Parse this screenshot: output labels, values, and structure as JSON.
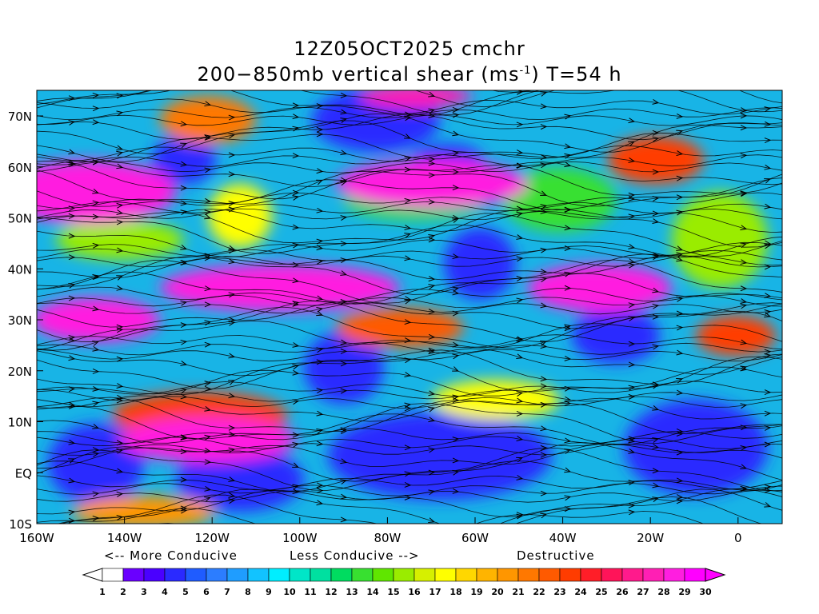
{
  "title": {
    "line1": "12Z05OCT2025 cmchr",
    "line2_prefix": "200−850mb vertical shear (ms",
    "line2_unit_exp": "-1",
    "line2_suffix": ") T=54 h"
  },
  "lat_labels": [
    "70N",
    "60N",
    "50N",
    "40N",
    "30N",
    "20N",
    "10N",
    "EQ",
    "10S"
  ],
  "lon_labels": [
    "160W",
    "140W",
    "120W",
    "100W",
    "80W",
    "60W",
    "40W",
    "20W",
    "0"
  ],
  "legend_notes": {
    "more_conducive": "<-- More Conducive",
    "less_conducive": "Less Conducive -->",
    "destructive": "Destructive"
  },
  "colorbar": {
    "labels": [
      "1",
      "2",
      "3",
      "4",
      "5",
      "6",
      "7",
      "8",
      "9",
      "10",
      "11",
      "12",
      "13",
      "14",
      "15",
      "16",
      "17",
      "18",
      "19",
      "20",
      "21",
      "22",
      "23",
      "24",
      "25",
      "26",
      "27",
      "28",
      "29",
      "30"
    ],
    "colors": [
      "#ffffff",
      "#6a00ff",
      "#4a00ff",
      "#2a2aff",
      "#1f5cff",
      "#2c7dff",
      "#1f9dff",
      "#12c3ff",
      "#00eeff",
      "#00e6c8",
      "#00e0a0",
      "#00dc60",
      "#38e030",
      "#60e600",
      "#9aec00",
      "#d6f000",
      "#ffff00",
      "#ffd700",
      "#ffb400",
      "#ff9600",
      "#ff7800",
      "#ff5a00",
      "#ff3c00",
      "#ff1e28",
      "#ff1459",
      "#ff1a8c",
      "#ff1fb4",
      "#ff1ee0",
      "#ff00ff"
    ]
  }
}
